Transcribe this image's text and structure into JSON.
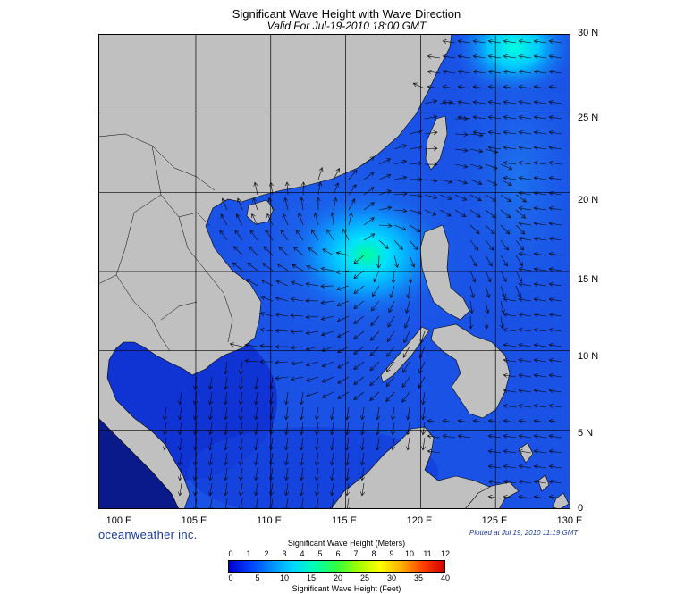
{
  "header": {
    "title": "Significant Wave Height with Wave Direction",
    "subtitle": "Valid For Jul-19-2010 18:00 GMT"
  },
  "map": {
    "lon_range": [
      98.5,
      130
    ],
    "lat_range": [
      0,
      30
    ],
    "gridline_lons": [
      105,
      110,
      115,
      120,
      125
    ],
    "gridline_lats": [
      5,
      10,
      15,
      20,
      25
    ],
    "lat_labels": [
      "30 N",
      "25 N",
      "20 N",
      "15 N",
      "10 N",
      "5 N",
      "0"
    ],
    "lon_labels": [
      "100 E",
      "105 E",
      "110 E",
      "115 E",
      "120 E",
      "125 E",
      "130 E"
    ],
    "land_color": "#c0c0c0",
    "sea_base_color": "#1a52e6",
    "storm_center": {
      "lon": 116.2,
      "lat": 16.8
    },
    "swell_hotspot": {
      "lon": 125.8,
      "lat": 29.6
    }
  },
  "footer": {
    "brand": "oceanweather inc.",
    "plotted": "Plotted at Jul 19, 2010 11:19 GMT"
  },
  "colorbar": {
    "title_meters": "Significant Wave Height (Meters)",
    "title_feet": "Significant Wave Height (Feet)",
    "meters_ticks": [
      "0",
      "1",
      "2",
      "3",
      "4",
      "5",
      "6",
      "7",
      "8",
      "9",
      "10",
      "11",
      "12"
    ],
    "feet_ticks": [
      "0",
      "5",
      "10",
      "15",
      "20",
      "25",
      "30",
      "35",
      "40"
    ],
    "colors": [
      "#0000d0",
      "#0040ff",
      "#0090ff",
      "#00d8ff",
      "#00ffb0",
      "#30ff40",
      "#a0ff00",
      "#ffff00",
      "#ffb000",
      "#ff4000",
      "#d00000"
    ]
  }
}
